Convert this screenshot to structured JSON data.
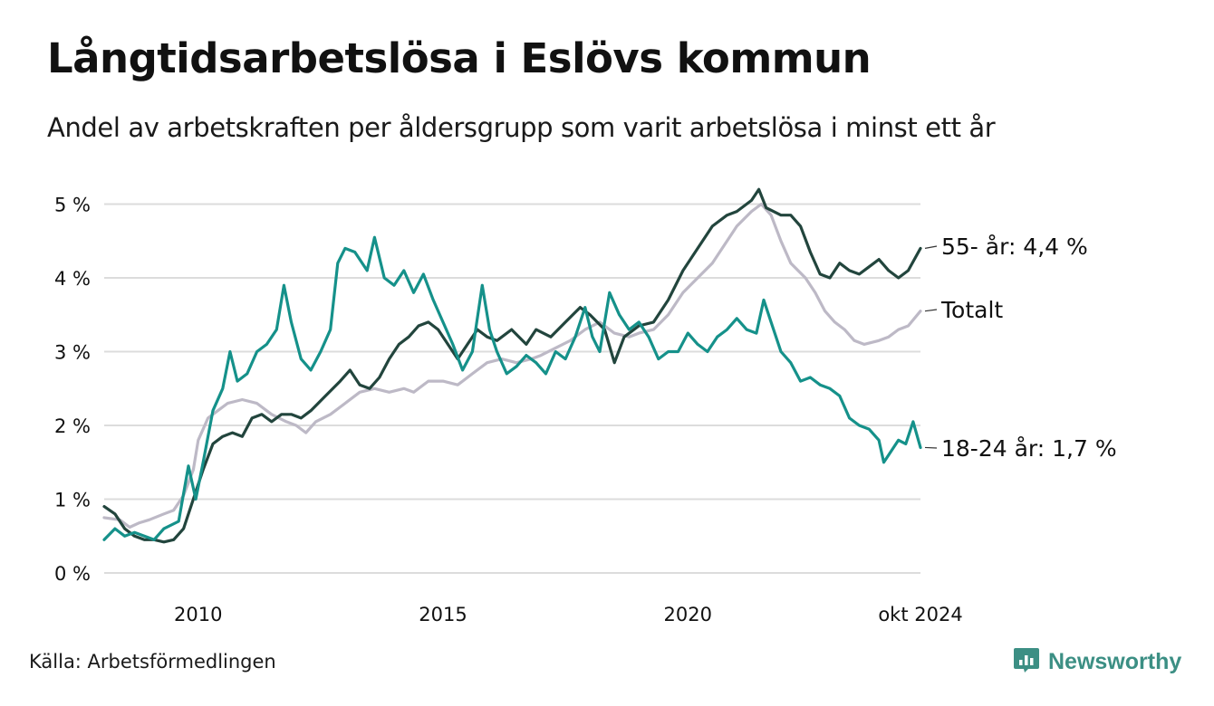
{
  "header": {
    "title": "Långtidsarbetslösa i Eslövs kommun",
    "subtitle": "Andel av arbetskraften per åldersgrupp som varit arbetslösa i minst ett år"
  },
  "footer": {
    "source": "Källa: Arbetsförmedlingen",
    "brand": "Newsworthy",
    "brand_icon": "chart-bubble-icon",
    "brand_color": "#3c8f84"
  },
  "chart_data": {
    "type": "line",
    "title": "Långtidsarbetslösa i Eslövs kommun",
    "subtitle": "Andel av arbetskraften per åldersgrupp som varit arbetslösa i minst ett år",
    "xlabel": "",
    "ylabel": "",
    "x_range": [
      2008.08,
      2024.75
    ],
    "ylim": [
      0,
      5.2
    ],
    "y_ticks": [
      0,
      1,
      2,
      3,
      4,
      5
    ],
    "y_tick_labels": [
      "0 %",
      "1 %",
      "2 %",
      "3 %",
      "4 %",
      "5 %"
    ],
    "x_ticks": [
      2010,
      2015,
      2020,
      2024.75
    ],
    "x_tick_labels": [
      "2010",
      "2015",
      "2020",
      "okt 2024"
    ],
    "grid": "horizontal",
    "legend": "direct labels at line ends (right)",
    "series": [
      {
        "name": "Totalt",
        "label": "Totalt",
        "color": "#bdb9c6",
        "points": [
          [
            2008.08,
            0.75
          ],
          [
            2008.4,
            0.72
          ],
          [
            2008.6,
            0.62
          ],
          [
            2008.8,
            0.68
          ],
          [
            2009.0,
            0.72
          ],
          [
            2009.3,
            0.8
          ],
          [
            2009.5,
            0.85
          ],
          [
            2009.7,
            1.05
          ],
          [
            2009.9,
            1.4
          ],
          [
            2010.0,
            1.8
          ],
          [
            2010.2,
            2.1
          ],
          [
            2010.4,
            2.2
          ],
          [
            2010.6,
            2.3
          ],
          [
            2010.9,
            2.35
          ],
          [
            2011.2,
            2.3
          ],
          [
            2011.5,
            2.15
          ],
          [
            2011.8,
            2.05
          ],
          [
            2012.0,
            2.0
          ],
          [
            2012.2,
            1.9
          ],
          [
            2012.4,
            2.05
          ],
          [
            2012.7,
            2.15
          ],
          [
            2013.0,
            2.3
          ],
          [
            2013.3,
            2.45
          ],
          [
            2013.6,
            2.5
          ],
          [
            2013.9,
            2.45
          ],
          [
            2014.2,
            2.5
          ],
          [
            2014.4,
            2.45
          ],
          [
            2014.7,
            2.6
          ],
          [
            2015.0,
            2.6
          ],
          [
            2015.3,
            2.55
          ],
          [
            2015.6,
            2.7
          ],
          [
            2015.9,
            2.85
          ],
          [
            2016.2,
            2.9
          ],
          [
            2016.5,
            2.85
          ],
          [
            2016.8,
            2.9
          ],
          [
            2017.0,
            2.95
          ],
          [
            2017.3,
            3.05
          ],
          [
            2017.6,
            3.15
          ],
          [
            2017.9,
            3.3
          ],
          [
            2018.2,
            3.4
          ],
          [
            2018.5,
            3.25
          ],
          [
            2018.8,
            3.2
          ],
          [
            2019.0,
            3.25
          ],
          [
            2019.3,
            3.3
          ],
          [
            2019.6,
            3.5
          ],
          [
            2019.9,
            3.8
          ],
          [
            2020.2,
            4.0
          ],
          [
            2020.5,
            4.2
          ],
          [
            2020.8,
            4.5
          ],
          [
            2021.0,
            4.7
          ],
          [
            2021.3,
            4.9
          ],
          [
            2021.5,
            5.0
          ],
          [
            2021.7,
            4.85
          ],
          [
            2021.9,
            4.5
          ],
          [
            2022.1,
            4.2
          ],
          [
            2022.4,
            4.0
          ],
          [
            2022.6,
            3.8
          ],
          [
            2022.8,
            3.55
          ],
          [
            2023.0,
            3.4
          ],
          [
            2023.2,
            3.3
          ],
          [
            2023.4,
            3.15
          ],
          [
            2023.6,
            3.1
          ],
          [
            2023.9,
            3.15
          ],
          [
            2024.1,
            3.2
          ],
          [
            2024.3,
            3.3
          ],
          [
            2024.5,
            3.35
          ],
          [
            2024.75,
            3.55
          ]
        ]
      },
      {
        "name": "55- år",
        "label": "55- år: 4,4 %",
        "color": "#22453d",
        "points": [
          [
            2008.08,
            0.9
          ],
          [
            2008.3,
            0.8
          ],
          [
            2008.5,
            0.6
          ],
          [
            2008.7,
            0.5
          ],
          [
            2008.9,
            0.45
          ],
          [
            2009.1,
            0.45
          ],
          [
            2009.3,
            0.42
          ],
          [
            2009.5,
            0.45
          ],
          [
            2009.7,
            0.6
          ],
          [
            2009.9,
            1.0
          ],
          [
            2010.1,
            1.4
          ],
          [
            2010.3,
            1.75
          ],
          [
            2010.5,
            1.85
          ],
          [
            2010.7,
            1.9
          ],
          [
            2010.9,
            1.85
          ],
          [
            2011.1,
            2.1
          ],
          [
            2011.3,
            2.15
          ],
          [
            2011.5,
            2.05
          ],
          [
            2011.7,
            2.15
          ],
          [
            2011.9,
            2.15
          ],
          [
            2012.1,
            2.1
          ],
          [
            2012.3,
            2.2
          ],
          [
            2012.6,
            2.4
          ],
          [
            2012.9,
            2.6
          ],
          [
            2013.1,
            2.75
          ],
          [
            2013.3,
            2.55
          ],
          [
            2013.5,
            2.5
          ],
          [
            2013.7,
            2.65
          ],
          [
            2013.9,
            2.9
          ],
          [
            2014.1,
            3.1
          ],
          [
            2014.3,
            3.2
          ],
          [
            2014.5,
            3.35
          ],
          [
            2014.7,
            3.4
          ],
          [
            2014.9,
            3.3
          ],
          [
            2015.1,
            3.1
          ],
          [
            2015.3,
            2.9
          ],
          [
            2015.5,
            3.1
          ],
          [
            2015.7,
            3.3
          ],
          [
            2015.9,
            3.2
          ],
          [
            2016.1,
            3.15
          ],
          [
            2016.4,
            3.3
          ],
          [
            2016.7,
            3.1
          ],
          [
            2016.9,
            3.3
          ],
          [
            2017.2,
            3.2
          ],
          [
            2017.5,
            3.4
          ],
          [
            2017.8,
            3.6
          ],
          [
            2018.0,
            3.5
          ],
          [
            2018.3,
            3.3
          ],
          [
            2018.5,
            2.85
          ],
          [
            2018.7,
            3.2
          ],
          [
            2019.0,
            3.35
          ],
          [
            2019.3,
            3.4
          ],
          [
            2019.6,
            3.7
          ],
          [
            2019.9,
            4.1
          ],
          [
            2020.2,
            4.4
          ],
          [
            2020.5,
            4.7
          ],
          [
            2020.8,
            4.85
          ],
          [
            2021.0,
            4.9
          ],
          [
            2021.3,
            5.05
          ],
          [
            2021.45,
            5.2
          ],
          [
            2021.6,
            4.95
          ],
          [
            2021.9,
            4.85
          ],
          [
            2022.1,
            4.85
          ],
          [
            2022.3,
            4.7
          ],
          [
            2022.5,
            4.35
          ],
          [
            2022.7,
            4.05
          ],
          [
            2022.9,
            4.0
          ],
          [
            2023.1,
            4.2
          ],
          [
            2023.3,
            4.1
          ],
          [
            2023.5,
            4.05
          ],
          [
            2023.7,
            4.15
          ],
          [
            2023.9,
            4.25
          ],
          [
            2024.1,
            4.1
          ],
          [
            2024.3,
            4.0
          ],
          [
            2024.5,
            4.1
          ],
          [
            2024.75,
            4.4
          ]
        ]
      },
      {
        "name": "18-24 år",
        "label": "18-24 år: 1,7 %",
        "color": "#15918a",
        "points": [
          [
            2008.08,
            0.45
          ],
          [
            2008.3,
            0.6
          ],
          [
            2008.5,
            0.5
          ],
          [
            2008.7,
            0.55
          ],
          [
            2008.9,
            0.5
          ],
          [
            2009.1,
            0.45
          ],
          [
            2009.3,
            0.6
          ],
          [
            2009.6,
            0.7
          ],
          [
            2009.8,
            1.45
          ],
          [
            2009.95,
            1.0
          ],
          [
            2010.1,
            1.5
          ],
          [
            2010.3,
            2.2
          ],
          [
            2010.5,
            2.5
          ],
          [
            2010.65,
            3.0
          ],
          [
            2010.8,
            2.6
          ],
          [
            2011.0,
            2.7
          ],
          [
            2011.2,
            3.0
          ],
          [
            2011.4,
            3.1
          ],
          [
            2011.6,
            3.3
          ],
          [
            2011.75,
            3.9
          ],
          [
            2011.9,
            3.4
          ],
          [
            2012.1,
            2.9
          ],
          [
            2012.3,
            2.75
          ],
          [
            2012.5,
            3.0
          ],
          [
            2012.7,
            3.3
          ],
          [
            2012.85,
            4.2
          ],
          [
            2013.0,
            4.4
          ],
          [
            2013.2,
            4.35
          ],
          [
            2013.45,
            4.1
          ],
          [
            2013.6,
            4.55
          ],
          [
            2013.8,
            4.0
          ],
          [
            2014.0,
            3.9
          ],
          [
            2014.2,
            4.1
          ],
          [
            2014.4,
            3.8
          ],
          [
            2014.6,
            4.05
          ],
          [
            2014.8,
            3.7
          ],
          [
            2015.0,
            3.4
          ],
          [
            2015.2,
            3.1
          ],
          [
            2015.4,
            2.75
          ],
          [
            2015.6,
            3.0
          ],
          [
            2015.8,
            3.9
          ],
          [
            2015.95,
            3.3
          ],
          [
            2016.1,
            3.0
          ],
          [
            2016.3,
            2.7
          ],
          [
            2016.5,
            2.8
          ],
          [
            2016.7,
            2.95
          ],
          [
            2016.9,
            2.85
          ],
          [
            2017.1,
            2.7
          ],
          [
            2017.3,
            3.0
          ],
          [
            2017.5,
            2.9
          ],
          [
            2017.7,
            3.2
          ],
          [
            2017.9,
            3.6
          ],
          [
            2018.05,
            3.2
          ],
          [
            2018.2,
            3.0
          ],
          [
            2018.4,
            3.8
          ],
          [
            2018.6,
            3.5
          ],
          [
            2018.8,
            3.3
          ],
          [
            2019.0,
            3.4
          ],
          [
            2019.2,
            3.2
          ],
          [
            2019.4,
            2.9
          ],
          [
            2019.6,
            3.0
          ],
          [
            2019.8,
            3.0
          ],
          [
            2020.0,
            3.25
          ],
          [
            2020.2,
            3.1
          ],
          [
            2020.4,
            3.0
          ],
          [
            2020.6,
            3.2
          ],
          [
            2020.8,
            3.3
          ],
          [
            2021.0,
            3.45
          ],
          [
            2021.2,
            3.3
          ],
          [
            2021.4,
            3.25
          ],
          [
            2021.55,
            3.7
          ],
          [
            2021.7,
            3.4
          ],
          [
            2021.9,
            3.0
          ],
          [
            2022.1,
            2.85
          ],
          [
            2022.3,
            2.6
          ],
          [
            2022.5,
            2.65
          ],
          [
            2022.7,
            2.55
          ],
          [
            2022.9,
            2.5
          ],
          [
            2023.1,
            2.4
          ],
          [
            2023.3,
            2.1
          ],
          [
            2023.5,
            2.0
          ],
          [
            2023.7,
            1.95
          ],
          [
            2023.9,
            1.8
          ],
          [
            2024.0,
            1.5
          ],
          [
            2024.1,
            1.6
          ],
          [
            2024.3,
            1.8
          ],
          [
            2024.45,
            1.75
          ],
          [
            2024.6,
            2.05
          ],
          [
            2024.75,
            1.7
          ]
        ]
      }
    ]
  }
}
